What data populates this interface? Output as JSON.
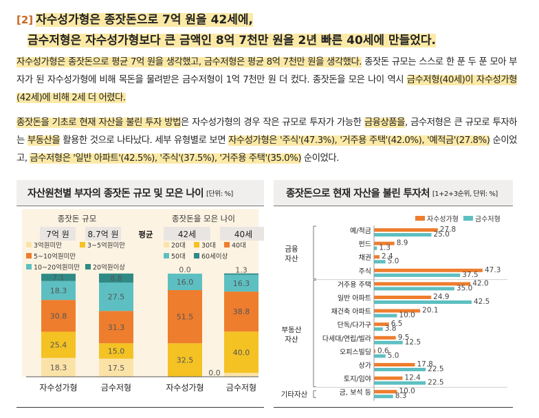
{
  "title": {
    "number": "[2]",
    "line1": "자수성가형은 종잣돈으로 7억 원을 42세에,",
    "line2": "금수저형은 자수성가형보다 큰 금액인 8억 7천만 원을 2년 빠른 40세에 만들었다."
  },
  "paragraph1": {
    "hl1": "자수성가형은 종잣돈으로 평균 7억 원을 생각했고, 금수저형은 평균 8억 7천만 원을 생각했다.",
    "t1": " 종잣돈 규모는 스스로 한 푼 두 푼 모아 부자가 된 자수성가형에 비해 목돈을 물려받은 금수저형이 1억 7천만 원 더 컸다. 종잣돈을 모은 나이 역시 ",
    "hl2": "금수저형(40세)이 자수성가형(42세)에 비해 2세 더 어렸다."
  },
  "paragraph2": {
    "hl1": "종잣돈을 기초로 현재 자산을 불린 투자 방법",
    "t1": "은 자수성가형의 경우 작은 규모로 투자가 가능한 ",
    "hl2": "금융상품을",
    "t2": ", 금수저형은 큰 규모로 투자하는 ",
    "hl3": "부동산을",
    "t3": " 활용한 것으로 나타났다. 세부 유형별로 보면 ",
    "hl4": "자수성가형은 '주식'(47.3%), '거주용 주택'(42.0%), '예적금'(27.8%)",
    "t4": " 순이었고, ",
    "hl5": "금수저형은 '일반 아파트'(42.5%), '주식'(37.5%), '거주용 주택'(35.0%)",
    "t5": " 순이었다."
  },
  "left_panel": {
    "heading": "자산원천별 부자의 종잣돈 규모 및 모은 나이",
    "unit": "[단위: %]"
  },
  "right_panel": {
    "heading": "종잣돈으로 현재 자산을 불린 투자처",
    "unit": "[1+2+3순위, 단위: %]"
  },
  "chart_data": [
    {
      "type": "bar",
      "stacked": true,
      "subtitle": "종잣돈 규모",
      "categories": [
        "자수성가형",
        "금수저형"
      ],
      "averages": [
        "7억 원",
        "8.7억 원"
      ],
      "average_label": "평균",
      "series": [
        {
          "name": "3억원미만",
          "values": [
            18.3,
            17.5
          ],
          "color": "#fbe3a8"
        },
        {
          "name": "3~5억원미만",
          "values": [
            25.4,
            15.0
          ],
          "color": "#f4c223"
        },
        {
          "name": "5~10억원미만",
          "values": [
            30.8,
            31.3
          ],
          "color": "#ee7d2d"
        },
        {
          "name": "10~20억원미만",
          "values": [
            18.3,
            27.5
          ],
          "color": "#5dbfc1"
        },
        {
          "name": "20억원이상",
          "values": [
            7.1,
            8.8
          ],
          "color": "#2f8a86"
        }
      ],
      "ylim": [
        0,
        100
      ]
    },
    {
      "type": "bar",
      "stacked": true,
      "subtitle": "종잣돈을 모은 나이",
      "categories": [
        "자수성가형",
        "금수저형"
      ],
      "averages": [
        "42세",
        "40세"
      ],
      "series": [
        {
          "name": "20대",
          "values": [
            0.0,
            3.8
          ],
          "color": "#fbe3a8"
        },
        {
          "name": "30대",
          "values": [
            32.5,
            40.0
          ],
          "color": "#f4c223"
        },
        {
          "name": "40대",
          "values": [
            51.5,
            38.8
          ],
          "color": "#ee7d2d"
        },
        {
          "name": "50대",
          "values": [
            16.0,
            16.3
          ],
          "color": "#5dbfc1"
        },
        {
          "name": "60세이상",
          "values": [
            0.0,
            1.3
          ],
          "color": "#2f8a86"
        }
      ],
      "ylim": [
        0,
        100
      ]
    },
    {
      "type": "bar",
      "orientation": "horizontal",
      "series": [
        {
          "name": "자수성가형",
          "color": "#ee7d2d"
        },
        {
          "name": "금수저형",
          "color": "#5dbfc1"
        }
      ],
      "groups": [
        {
          "name": "금융 자산",
          "items": [
            {
              "label": "예/적금",
              "values": [
                27.8,
                25.0
              ]
            },
            {
              "label": "펀드",
              "values": [
                8.9,
                1.3
              ]
            },
            {
              "label": "채권",
              "values": [
                2.4,
                5.0
              ]
            },
            {
              "label": "주식",
              "values": [
                47.3,
                37.5
              ]
            }
          ]
        },
        {
          "name": "부동산 자산",
          "items": [
            {
              "label": "거주용 주택",
              "values": [
                42.0,
                35.0
              ]
            },
            {
              "label": "일반 아파트",
              "values": [
                24.9,
                42.5
              ]
            },
            {
              "label": "재건축 아파트",
              "values": [
                20.1,
                10.0
              ]
            },
            {
              "label": "단독/다가구",
              "values": [
                6.5,
                3.8
              ]
            },
            {
              "label": "다세대/연립/빌라",
              "values": [
                9.5,
                12.5
              ]
            },
            {
              "label": "오피스빌딩",
              "values": [
                0.6,
                5.0
              ]
            },
            {
              "label": "상가",
              "values": [
                17.8,
                22.5
              ]
            },
            {
              "label": "토지/임야",
              "values": [
                12.4,
                22.5
              ]
            }
          ]
        },
        {
          "name": "기타자산",
          "items": [
            {
              "label": "금, 보석 등",
              "values": [
                10.0,
                8.3
              ]
            }
          ]
        }
      ],
      "xlim": [
        0,
        50
      ]
    }
  ]
}
